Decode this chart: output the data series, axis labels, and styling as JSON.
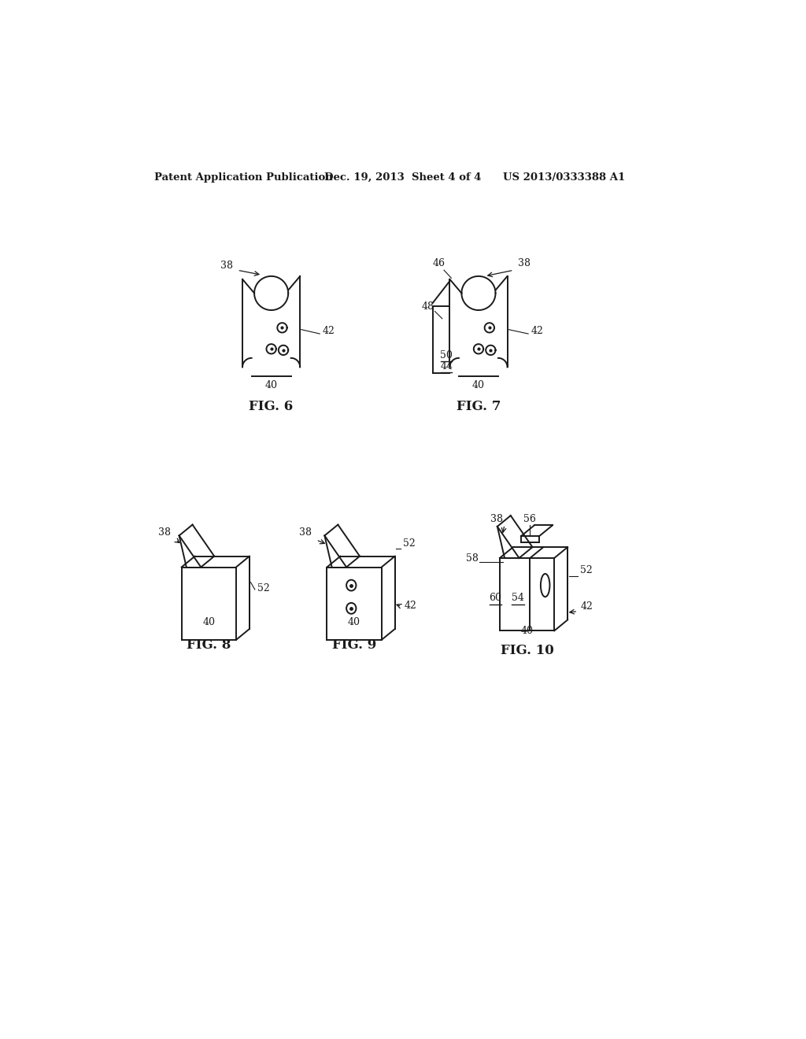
{
  "header_left": "Patent Application Publication",
  "header_mid": "Dec. 19, 2013  Sheet 4 of 4",
  "header_right": "US 2013/0333388 A1",
  "background_color": "#ffffff",
  "line_color": "#1a1a1a",
  "fig6_label": "FIG. 6",
  "fig7_label": "FIG. 7",
  "fig8_label": "FIG. 8",
  "fig9_label": "FIG. 9",
  "fig10_label": "FIG. 10"
}
